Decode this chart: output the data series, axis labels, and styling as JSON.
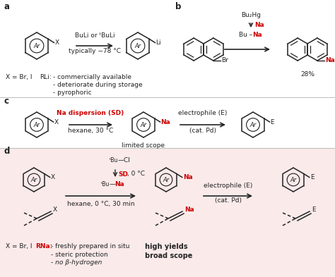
{
  "bg_top": "#ffffff",
  "bg_bottom": "#faeaea",
  "red": "#cc0000",
  "black": "#222222",
  "gray_line": "#bbbbbb",
  "label_a": "a",
  "label_b": "b",
  "label_c": "c",
  "label_d": "d",
  "a_arrow_top": "BuLi or ᵗBuLi",
  "a_arrow_bot": "typically −78 °C",
  "a_x_note": "X = Br, I",
  "a_rli": "RLi:",
  "a_b1": "- commercially available",
  "a_b2": "- deteriorate during storage",
  "a_b3": "- pyrophoric",
  "b_top": "Bu₂Hg",
  "b_na1": "Na",
  "b_na2": "Na",
  "b_bu": "Bu –",
  "b_pct": "28%",
  "c_red": "Na dispersion (SD)",
  "c_sub": "hexane, 30 °C",
  "c_scope": "limited scope",
  "c_elec": "electrophile (E)",
  "c_cat": "(cat. Pd)",
  "d_tbucl_tbu": "ᵗBu",
  "d_tbucl_rest": "—Cl",
  "d_sd": "SD",
  "d_sd2": ", 0 °C",
  "d_tbuna_tbu": "ᵗBu",
  "d_tbuna_rest": "—",
  "d_na3": "Na",
  "d_hex": "hexane, 0 °C, 30 min",
  "d_elec": "electrophile (E)",
  "d_cat": "(cat. Pd)",
  "d_xnote": "X = Br, I",
  "d_rna": "RNa:",
  "d_b1": "- freshly prepared in situ",
  "d_b2": "- steric protection",
  "d_b3": "- no β-hydrogen",
  "d_high": "high yields",
  "d_broad": "broad scope"
}
